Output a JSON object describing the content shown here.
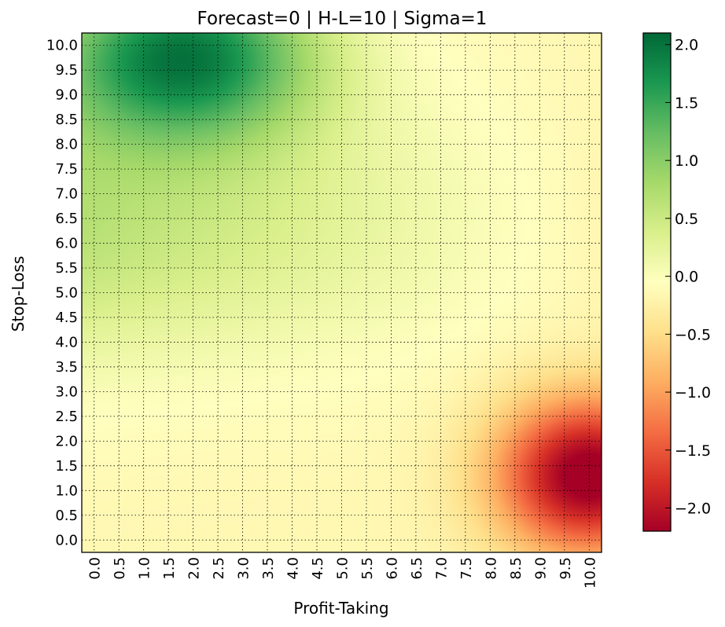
{
  "chart_data": {
    "type": "heatmap",
    "title": "Forecast=0 | H-L=10 | Sigma=1",
    "xlabel": "Profit-Taking",
    "ylabel": "Stop-Loss",
    "x": [
      "0.0",
      "0.5",
      "1.0",
      "1.5",
      "2.0",
      "2.5",
      "3.0",
      "3.5",
      "4.0",
      "4.5",
      "5.0",
      "5.5",
      "6.0",
      "6.5",
      "7.0",
      "7.5",
      "8.0",
      "8.5",
      "9.0",
      "9.5",
      "10.0"
    ],
    "y": [
      "0.0",
      "0.5",
      "1.0",
      "1.5",
      "2.0",
      "2.5",
      "3.0",
      "3.5",
      "4.0",
      "4.5",
      "5.0",
      "5.5",
      "6.0",
      "6.5",
      "7.0",
      "7.5",
      "8.0",
      "8.5",
      "9.0",
      "9.5",
      "10.0"
    ],
    "grid": true,
    "colorbar": {
      "range": [
        -2.2,
        2.1
      ],
      "ticks": [
        "2.0",
        "1.5",
        "1.0",
        "0.5",
        "0.0",
        "−0.5",
        "−1.0",
        "−1.5",
        "−2.0"
      ],
      "tick_values": [
        2.0,
        1.5,
        1.0,
        0.5,
        0.0,
        -0.5,
        -1.0,
        -1.5,
        -2.0
      ],
      "colormap": "RdYlGn",
      "colors": [
        "#a50026",
        "#d73027",
        "#f46d43",
        "#fdae61",
        "#fee08b",
        "#ffffbf",
        "#d9ef8b",
        "#a6d96a",
        "#66bd63",
        "#1a9850",
        "#006837"
      ]
    },
    "value_function": "z(pt, sl) approx: 2.0*exp(-((pt-1.8)^2/7 + (sl-9.8)^2/3)) - 2.2*exp(-((pt-10)^2/3.5 + (sl-1.3)^2/2.5)) + 0.8*exp(-((sl-6.5)^2/8)) * (1 - pt/10) - 0.15"
  }
}
